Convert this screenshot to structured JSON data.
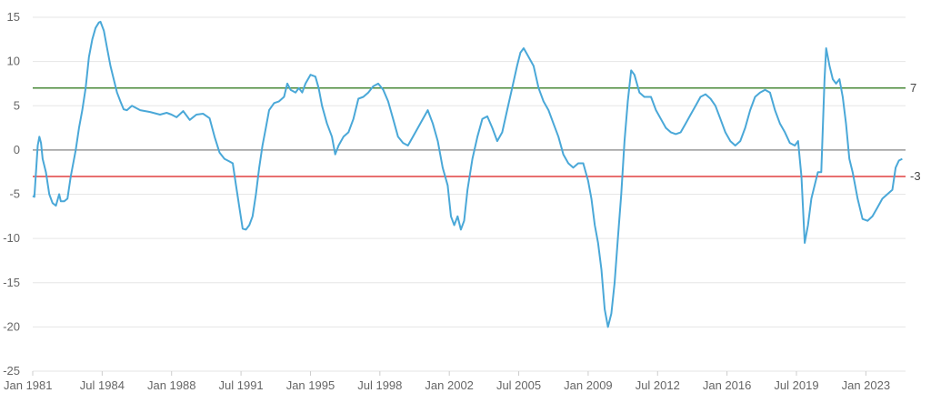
{
  "chart_data": {
    "type": "line",
    "title": "",
    "xlabel": "",
    "ylabel": "",
    "xlim": [
      "1981-01",
      "2025-01"
    ],
    "ylim": [
      -25,
      15
    ],
    "y_ticks": [
      15,
      10,
      5,
      0,
      -5,
      -10,
      -15,
      -20,
      -25
    ],
    "x_ticks": [
      {
        "label": "Jan 1981",
        "date": "1981-01"
      },
      {
        "label": "Jul 1984",
        "date": "1984-07"
      },
      {
        "label": "Jan 1988",
        "date": "1988-01"
      },
      {
        "label": "Jul 1991",
        "date": "1991-07"
      },
      {
        "label": "Jan 1995",
        "date": "1995-01"
      },
      {
        "label": "Jul 1998",
        "date": "1998-07"
      },
      {
        "label": "Jan 2002",
        "date": "2002-01"
      },
      {
        "label": "Jul 2005",
        "date": "2005-07"
      },
      {
        "label": "Jan 2009",
        "date": "2009-01"
      },
      {
        "label": "Jul 2012",
        "date": "2012-07"
      },
      {
        "label": "Jan 2016",
        "date": "2016-01"
      },
      {
        "label": "Jul 2019",
        "date": "2019-07"
      },
      {
        "label": "Jan 2023",
        "date": "2023-01"
      }
    ],
    "grid": true,
    "reference_lines": [
      {
        "value": 7,
        "label": "7",
        "color": "#4a8a3a"
      },
      {
        "value": -3,
        "label": "-3",
        "color": "#e04040"
      },
      {
        "value": 0,
        "label": "",
        "color": "#999999"
      }
    ],
    "series": [
      {
        "color": "#4aa8d8",
        "points": [
          [
            "1981-01",
            -5.2
          ],
          [
            "1981-02",
            -5.3
          ],
          [
            "1981-04",
            0.5
          ],
          [
            "1981-05",
            1.5
          ],
          [
            "1981-06",
            0.8
          ],
          [
            "1981-07",
            -1.0
          ],
          [
            "1981-09",
            -2.5
          ],
          [
            "1981-11",
            -5.0
          ],
          [
            "1982-01",
            -6.0
          ],
          [
            "1982-03",
            -6.3
          ],
          [
            "1982-05",
            -5.0
          ],
          [
            "1982-06",
            -5.8
          ],
          [
            "1982-08",
            -5.8
          ],
          [
            "1982-10",
            -5.5
          ],
          [
            "1982-12",
            -3.0
          ],
          [
            "1983-03",
            0.0
          ],
          [
            "1983-05",
            2.5
          ],
          [
            "1983-07",
            4.5
          ],
          [
            "1983-09",
            7.0
          ],
          [
            "1983-11",
            10.5
          ],
          [
            "1984-01",
            12.5
          ],
          [
            "1984-03",
            13.8
          ],
          [
            "1984-05",
            14.4
          ],
          [
            "1984-06",
            14.5
          ],
          [
            "1984-08",
            13.5
          ],
          [
            "1984-10",
            11.5
          ],
          [
            "1984-12",
            9.5
          ],
          [
            "1985-02",
            8.0
          ],
          [
            "1985-04",
            6.5
          ],
          [
            "1985-06",
            5.5
          ],
          [
            "1985-08",
            4.6
          ],
          [
            "1985-10",
            4.5
          ],
          [
            "1986-01",
            5.0
          ],
          [
            "1986-06",
            4.5
          ],
          [
            "1986-12",
            4.3
          ],
          [
            "1987-06",
            4.0
          ],
          [
            "1987-10",
            4.2
          ],
          [
            "1988-01",
            4.0
          ],
          [
            "1988-04",
            3.7
          ],
          [
            "1988-08",
            4.4
          ],
          [
            "1988-12",
            3.4
          ],
          [
            "1989-04",
            4.0
          ],
          [
            "1989-08",
            4.1
          ],
          [
            "1989-12",
            3.6
          ],
          [
            "1990-03",
            1.5
          ],
          [
            "1990-06",
            -0.3
          ],
          [
            "1990-09",
            -1.0
          ],
          [
            "1990-12",
            -1.3
          ],
          [
            "1991-02",
            -1.5
          ],
          [
            "1991-04",
            -4.0
          ],
          [
            "1991-06",
            -6.5
          ],
          [
            "1991-08",
            -8.9
          ],
          [
            "1991-10",
            -9.0
          ],
          [
            "1991-12",
            -8.5
          ],
          [
            "1992-02",
            -7.5
          ],
          [
            "1992-04",
            -5.0
          ],
          [
            "1992-06",
            -2.0
          ],
          [
            "1992-08",
            0.5
          ],
          [
            "1992-10",
            2.5
          ],
          [
            "1992-12",
            4.5
          ],
          [
            "1993-03",
            5.3
          ],
          [
            "1993-06",
            5.5
          ],
          [
            "1993-09",
            6.0
          ],
          [
            "1993-11",
            7.5
          ],
          [
            "1994-01",
            6.8
          ],
          [
            "1994-04",
            6.5
          ],
          [
            "1994-06",
            7.0
          ],
          [
            "1994-08",
            6.5
          ],
          [
            "1994-10",
            7.5
          ],
          [
            "1995-01",
            8.5
          ],
          [
            "1995-04",
            8.3
          ],
          [
            "1995-06",
            7.0
          ],
          [
            "1995-08",
            5.0
          ],
          [
            "1995-11",
            3.0
          ],
          [
            "1996-02",
            1.5
          ],
          [
            "1996-04",
            -0.5
          ],
          [
            "1996-06",
            0.5
          ],
          [
            "1996-09",
            1.5
          ],
          [
            "1996-12",
            2.0
          ],
          [
            "1997-03",
            3.5
          ],
          [
            "1997-06",
            5.8
          ],
          [
            "1997-09",
            6.0
          ],
          [
            "1997-12",
            6.5
          ],
          [
            "1998-03",
            7.2
          ],
          [
            "1998-06",
            7.5
          ],
          [
            "1998-09",
            6.8
          ],
          [
            "1998-12",
            5.5
          ],
          [
            "1999-03",
            3.5
          ],
          [
            "1999-06",
            1.5
          ],
          [
            "1999-09",
            0.8
          ],
          [
            "1999-12",
            0.5
          ],
          [
            "2000-03",
            1.5
          ],
          [
            "2000-06",
            2.5
          ],
          [
            "2000-09",
            3.5
          ],
          [
            "2000-12",
            4.5
          ],
          [
            "2001-03",
            3.0
          ],
          [
            "2001-06",
            1.0
          ],
          [
            "2001-09",
            -2.0
          ],
          [
            "2001-12",
            -4.0
          ],
          [
            "2002-02",
            -7.5
          ],
          [
            "2002-04",
            -8.5
          ],
          [
            "2002-06",
            -7.5
          ],
          [
            "2002-08",
            -9.0
          ],
          [
            "2002-10",
            -8.0
          ],
          [
            "2002-12",
            -4.5
          ],
          [
            "2003-03",
            -1.0
          ],
          [
            "2003-06",
            1.5
          ],
          [
            "2003-09",
            3.5
          ],
          [
            "2003-12",
            3.8
          ],
          [
            "2004-03",
            2.5
          ],
          [
            "2004-06",
            1.0
          ],
          [
            "2004-09",
            2.0
          ],
          [
            "2004-12",
            4.5
          ],
          [
            "2005-03",
            7.0
          ],
          [
            "2005-06",
            9.5
          ],
          [
            "2005-08",
            11.0
          ],
          [
            "2005-10",
            11.5
          ],
          [
            "2006-01",
            10.5
          ],
          [
            "2006-04",
            9.5
          ],
          [
            "2006-07",
            7.0
          ],
          [
            "2006-10",
            5.5
          ],
          [
            "2007-01",
            4.5
          ],
          [
            "2007-04",
            3.0
          ],
          [
            "2007-07",
            1.5
          ],
          [
            "2007-10",
            -0.5
          ],
          [
            "2008-01",
            -1.5
          ],
          [
            "2008-04",
            -2.0
          ],
          [
            "2008-07",
            -1.5
          ],
          [
            "2008-10",
            -1.5
          ],
          [
            "2009-01",
            -3.5
          ],
          [
            "2009-03",
            -5.5
          ],
          [
            "2009-05",
            -8.5
          ],
          [
            "2009-07",
            -10.5
          ],
          [
            "2009-09",
            -13.5
          ],
          [
            "2009-11",
            -18.0
          ],
          [
            "2010-01",
            -20.0
          ],
          [
            "2010-03",
            -18.5
          ],
          [
            "2010-05",
            -15.0
          ],
          [
            "2010-07",
            -10.0
          ],
          [
            "2010-09",
            -5.0
          ],
          [
            "2010-11",
            1.0
          ],
          [
            "2011-01",
            5.5
          ],
          [
            "2011-03",
            9.0
          ],
          [
            "2011-05",
            8.5
          ],
          [
            "2011-08",
            6.5
          ],
          [
            "2011-11",
            6.0
          ],
          [
            "2012-03",
            6.0
          ],
          [
            "2012-06",
            4.5
          ],
          [
            "2012-09",
            3.5
          ],
          [
            "2012-12",
            2.5
          ],
          [
            "2013-03",
            2.0
          ],
          [
            "2013-06",
            1.8
          ],
          [
            "2013-09",
            2.0
          ],
          [
            "2013-12",
            3.0
          ],
          [
            "2014-03",
            4.0
          ],
          [
            "2014-06",
            5.0
          ],
          [
            "2014-09",
            6.0
          ],
          [
            "2014-12",
            6.3
          ],
          [
            "2015-03",
            5.8
          ],
          [
            "2015-06",
            5.0
          ],
          [
            "2015-09",
            3.5
          ],
          [
            "2015-12",
            2.0
          ],
          [
            "2016-03",
            1.0
          ],
          [
            "2016-06",
            0.5
          ],
          [
            "2016-09",
            1.0
          ],
          [
            "2016-12",
            2.5
          ],
          [
            "2017-03",
            4.5
          ],
          [
            "2017-06",
            6.0
          ],
          [
            "2017-09",
            6.5
          ],
          [
            "2017-12",
            6.8
          ],
          [
            "2018-03",
            6.5
          ],
          [
            "2018-06",
            4.5
          ],
          [
            "2018-09",
            3.0
          ],
          [
            "2018-12",
            2.0
          ],
          [
            "2019-03",
            0.8
          ],
          [
            "2019-06",
            0.5
          ],
          [
            "2019-08",
            1.0
          ],
          [
            "2019-10",
            -3.0
          ],
          [
            "2019-12",
            -10.5
          ],
          [
            "2020-02",
            -8.5
          ],
          [
            "2020-04",
            -5.5
          ],
          [
            "2020-06",
            -4.0
          ],
          [
            "2020-08",
            -2.5
          ],
          [
            "2020-10",
            -2.5
          ],
          [
            "2020-12",
            8.0
          ],
          [
            "2021-01",
            11.5
          ],
          [
            "2021-03",
            9.5
          ],
          [
            "2021-05",
            8.0
          ],
          [
            "2021-07",
            7.5
          ],
          [
            "2021-09",
            8.0
          ],
          [
            "2021-11",
            6.0
          ],
          [
            "2022-01",
            3.0
          ],
          [
            "2022-03",
            -1.0
          ],
          [
            "2022-05",
            -2.5
          ],
          [
            "2022-08",
            -5.5
          ],
          [
            "2022-11",
            -7.8
          ],
          [
            "2023-02",
            -8.0
          ],
          [
            "2023-05",
            -7.5
          ],
          [
            "2023-08",
            -6.5
          ],
          [
            "2023-11",
            -5.5
          ],
          [
            "2024-02",
            -5.0
          ],
          [
            "2024-05",
            -4.5
          ],
          [
            "2024-07",
            -2.0
          ],
          [
            "2024-09",
            -1.2
          ],
          [
            "2024-11",
            -1.0
          ]
        ]
      }
    ]
  }
}
